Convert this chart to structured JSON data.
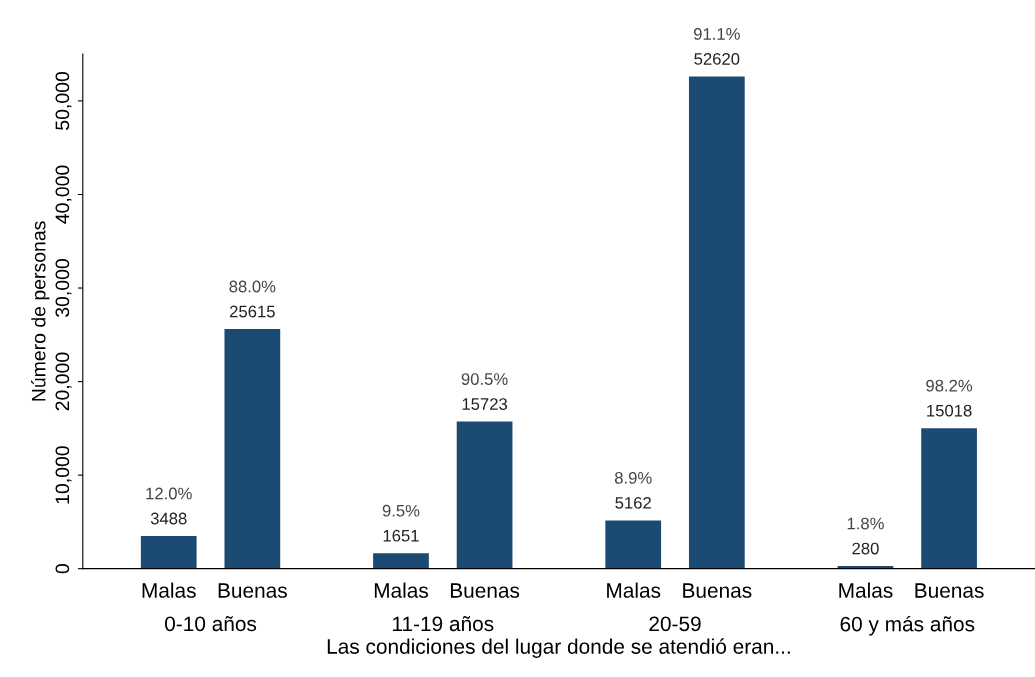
{
  "chart_data": {
    "type": "bar",
    "xlabel": "Las condiciones del lugar donde se atendió eran...",
    "ylabel": "Número de personas",
    "categories": [
      "0-10 años",
      "11-19 años",
      "20-59",
      "60 y más años"
    ],
    "series": [
      {
        "name": "Malas",
        "color": "#1b4a72",
        "values": [
          3488,
          1651,
          5162,
          280
        ]
      },
      {
        "name": "Buenas",
        "color": "#1b4a72",
        "values": [
          25615,
          15723,
          52620,
          15018
        ]
      }
    ],
    "data_labels": true,
    "annotations": [
      "12.0%",
      "88.0%",
      "9.5%",
      "90.5%",
      "8.9%",
      "91.1%",
      "1.8%",
      "98.2%"
    ],
    "ylim": [
      0,
      55000
    ],
    "yticks": [
      {
        "value": 0,
        "label": "0"
      },
      {
        "value": 10000,
        "label": "10,000"
      },
      {
        "value": 20000,
        "label": "20,000"
      },
      {
        "value": 30000,
        "label": "30,000"
      },
      {
        "value": 40000,
        "label": "40,000"
      },
      {
        "value": 50000,
        "label": "50,000"
      }
    ],
    "grid": false,
    "legend": false
  }
}
